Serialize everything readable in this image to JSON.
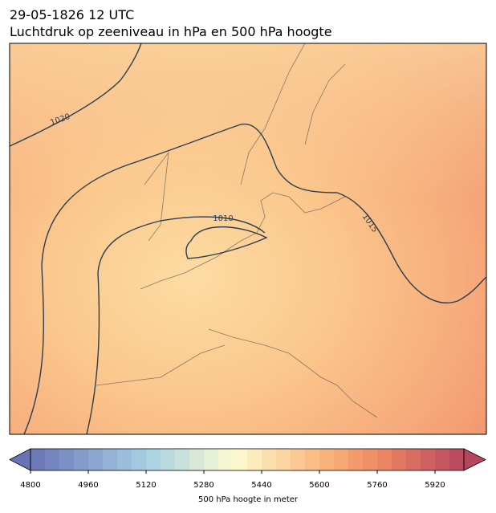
{
  "header": {
    "date": "29-05-1826 12 UTC",
    "title": "Luchtdruk op zeeniveau in hPa en 500 hPa hoogte"
  },
  "map": {
    "contour_labels": [
      "1020",
      "1010",
      "1015"
    ]
  },
  "colorbar": {
    "min": 4800,
    "max": 6000,
    "step": 40,
    "ticks": [
      4800,
      4960,
      5120,
      5280,
      5440,
      5600,
      5760,
      5920
    ],
    "label": "500 hPa hoogte in meter"
  }
}
